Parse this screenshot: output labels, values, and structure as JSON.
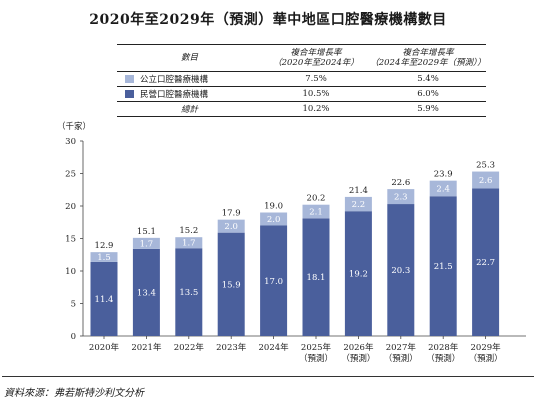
{
  "title": "2020年至2029年（預測）華中地區口腔醫療機構數目",
  "table": {
    "header": {
      "col1": "數目",
      "col2_line1": "複合年增長率",
      "col2_line2": "（2020年至2024年）",
      "col3_line1": "複合年增長率",
      "col3_line2": "（2024年至2029年（預測））"
    },
    "rows": [
      {
        "label": "公立口腔醫療機構",
        "cagr1": "7.5%",
        "cagr2": "5.4%",
        "color": "#a7b7d9"
      },
      {
        "label": "民營口腔醫療機構",
        "cagr1": "10.5%",
        "cagr2": "6.0%",
        "color": "#4a5f9c"
      },
      {
        "label": "總計",
        "cagr1": "10.2%",
        "cagr2": "5.9%"
      }
    ]
  },
  "chart_data": {
    "type": "bar",
    "stacked": true,
    "y_unit": "（千家）",
    "ylim": [
      0,
      30
    ],
    "yticks": [
      "0",
      "5",
      "10",
      "15",
      "20",
      "25",
      "30"
    ],
    "categories": [
      [
        "2020年"
      ],
      [
        "2021年"
      ],
      [
        "2022年"
      ],
      [
        "2023年"
      ],
      [
        "2024年"
      ],
      [
        "2025年",
        "（預測）"
      ],
      [
        "2026年",
        "（預測）"
      ],
      [
        "2027年",
        "（預測）"
      ],
      [
        "2028年",
        "（預測）"
      ],
      [
        "2029年",
        "（預測）"
      ]
    ],
    "series": [
      {
        "name": "民營口腔醫療機構",
        "color": "#4a5f9c",
        "values": [
          11.4,
          13.4,
          13.5,
          15.9,
          17.0,
          18.1,
          19.2,
          20.3,
          21.5,
          22.7
        ],
        "labels": [
          "11.4",
          "13.4",
          "13.5",
          "15.9",
          "17.0",
          "18.1",
          "19.2",
          "20.3",
          "21.5",
          "22.7"
        ]
      },
      {
        "name": "公立口腔醫療機構",
        "color": "#a7b7d9",
        "values": [
          1.5,
          1.7,
          1.7,
          2.0,
          2.0,
          2.1,
          2.2,
          2.3,
          2.4,
          2.6
        ],
        "labels": [
          "1.5",
          "1.7",
          "1.7",
          "2.0",
          "2.0",
          "2.1",
          "2.2",
          "2.3",
          "2.4",
          "2.6"
        ]
      }
    ],
    "totals": [
      12.9,
      15.1,
      15.2,
      17.9,
      19.0,
      20.2,
      21.4,
      22.6,
      23.9,
      25.3
    ],
    "total_labels": [
      "12.9",
      "15.1",
      "15.2",
      "17.9",
      "19.0",
      "20.2",
      "21.4",
      "22.6",
      "23.9",
      "25.3"
    ],
    "legend": "table-above",
    "grid": false
  },
  "source": "資料來源：弗若斯特沙利文分析"
}
